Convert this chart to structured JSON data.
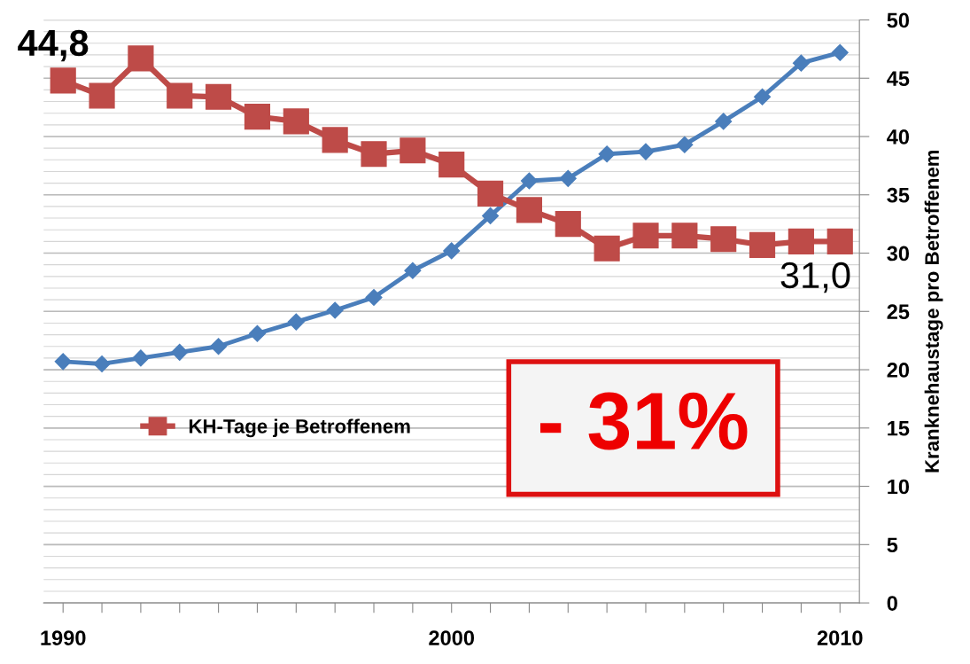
{
  "chart_data": {
    "type": "line",
    "ylabel": "Kranknehaustage pro Betroffenem",
    "x": [
      1990,
      1991,
      1992,
      1993,
      1994,
      1995,
      1996,
      1997,
      1998,
      1999,
      2000,
      2001,
      2002,
      2003,
      2004,
      2005,
      2006,
      2007,
      2008,
      2009,
      2010
    ],
    "series": [
      {
        "color": "#4a7ebb",
        "marker": "diamond",
        "values": [
          20.7,
          20.5,
          21.0,
          21.5,
          22.0,
          23.1,
          24.1,
          25.1,
          26.2,
          28.5,
          30.2,
          33.2,
          36.2,
          36.4,
          38.5,
          38.7,
          39.3,
          41.3,
          43.4,
          46.3,
          47.2
        ]
      },
      {
        "name": "KH-Tage je Betroffenem",
        "color": "#be4b48",
        "marker": "square",
        "values": [
          44.8,
          43.5,
          46.7,
          43.5,
          43.4,
          41.7,
          41.3,
          39.7,
          38.5,
          38.8,
          37.6,
          35.1,
          33.7,
          32.5,
          30.4,
          31.5,
          31.5,
          31.2,
          30.7,
          31.0,
          31.0
        ]
      }
    ],
    "xlim": [
      1989.5,
      2010.5
    ],
    "xticks": [
      1990,
      {
        "value": 1991,
        "label": null
      },
      {
        "value": 1992,
        "label": null
      },
      {
        "value": 1993,
        "label": null
      },
      {
        "value": 1994,
        "label": null
      },
      {
        "value": 1995,
        "label": null
      },
      {
        "value": 1996,
        "label": null
      },
      {
        "value": 1997,
        "label": null
      },
      {
        "value": 1998,
        "label": null
      },
      {
        "value": 1999,
        "label": null
      },
      2000,
      {
        "value": 2001,
        "label": null
      },
      {
        "value": 2002,
        "label": null
      },
      {
        "value": 2003,
        "label": null
      },
      {
        "value": 2004,
        "label": null
      },
      {
        "value": 2005,
        "label": null
      },
      {
        "value": 2006,
        "label": null
      },
      {
        "value": 2007,
        "label": null
      },
      {
        "value": 2008,
        "label": null
      },
      {
        "value": 2009,
        "label": null
      },
      2010
    ],
    "ylim": [
      0,
      50
    ],
    "yticks": [
      0,
      5,
      10,
      15,
      20,
      25,
      30,
      35,
      40,
      45,
      50
    ],
    "grid": "y",
    "legend": "left",
    "line_style": "solid",
    "annotations": [
      {
        "text": "44,8",
        "x": 1990,
        "y": 44.8
      },
      {
        "text": "31,0",
        "x": 2010,
        "y": 31.0
      },
      "- 31%"
    ]
  }
}
